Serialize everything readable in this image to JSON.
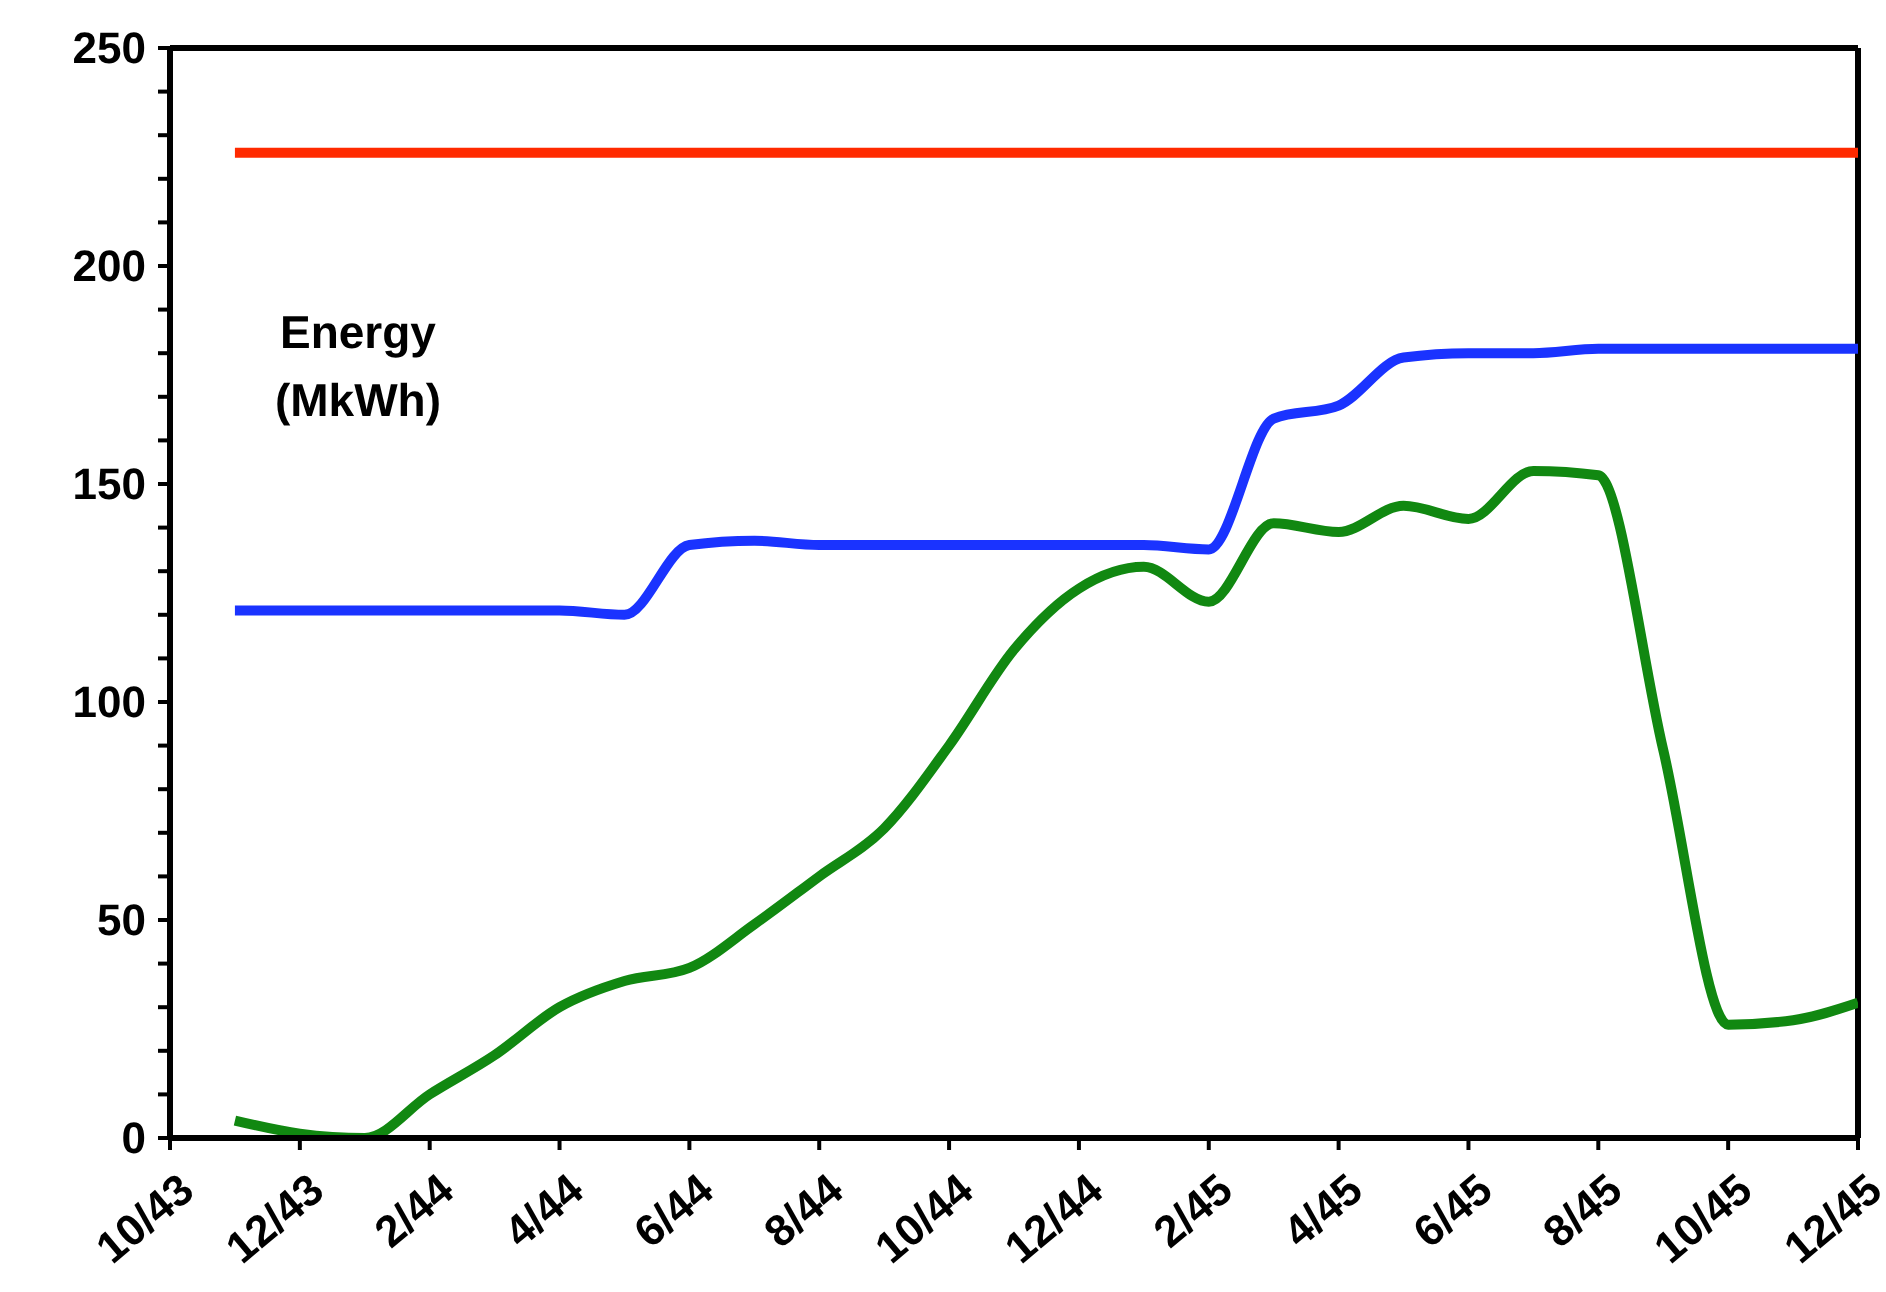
{
  "chart_data": {
    "type": "line",
    "ylabel": "Energy\n(MkWh)",
    "x": [
      "1943-11",
      "1943-12",
      "1944-01",
      "1944-02",
      "1944-03",
      "1944-04",
      "1944-05",
      "1944-06",
      "1944-07",
      "1944-08",
      "1944-09",
      "1944-10",
      "1944-11",
      "1944-12",
      "1945-01",
      "1945-02",
      "1945-03",
      "1945-04",
      "1945-05",
      "1945-06",
      "1945-07",
      "1945-08",
      "1945-09",
      "1945-10",
      "1945-11",
      "1945-12"
    ],
    "series": [
      {
        "color": "#ff2a00",
        "values": [
          226,
          226,
          226,
          226,
          226,
          226,
          226,
          226,
          226,
          226,
          226,
          226,
          226,
          226,
          226,
          226,
          226,
          226,
          226,
          226,
          226,
          226,
          226,
          226,
          226,
          226
        ]
      },
      {
        "color": "#1a33ff",
        "values": [
          121,
          121,
          121,
          121,
          121,
          121,
          120,
          136,
          137,
          136,
          136,
          136,
          136,
          136,
          136,
          135,
          165,
          168,
          179,
          180,
          180,
          181,
          181,
          181,
          181,
          181
        ]
      },
      {
        "color": "#118811",
        "values": [
          4,
          1,
          0,
          10,
          19,
          30,
          36,
          39,
          49,
          60,
          71,
          90,
          112,
          126,
          131,
          123,
          141,
          139,
          145,
          142,
          153,
          152,
          89,
          26,
          27,
          31
        ]
      }
    ],
    "xlim": [
      "1943-10",
      "1945-12"
    ],
    "xticks": [
      {
        "value": "1943-10",
        "label": "10/43"
      },
      {
        "value": "1943-12",
        "label": "12/43"
      },
      {
        "value": "1944-02",
        "label": "2/44"
      },
      {
        "value": "1944-04",
        "label": "4/44"
      },
      {
        "value": "1944-06",
        "label": "6/44"
      },
      {
        "value": "1944-08",
        "label": "8/44"
      },
      {
        "value": "1944-10",
        "label": "10/44"
      },
      {
        "value": "1944-12",
        "label": "12/44"
      },
      {
        "value": "1945-02",
        "label": "2/45"
      },
      {
        "value": "1945-04",
        "label": "4/45"
      },
      {
        "value": "1945-06",
        "label": "6/45"
      },
      {
        "value": "1945-08",
        "label": "8/45"
      },
      {
        "value": "1945-10",
        "label": "10/45"
      },
      {
        "value": "1945-12",
        "label": "12/45"
      }
    ],
    "ylim": [
      0,
      250
    ],
    "yticks": [
      0,
      {
        "value": 10,
        "label": null
      },
      {
        "value": 20,
        "label": null
      },
      {
        "value": 30,
        "label": null
      },
      {
        "value": 40,
        "label": null
      },
      50,
      {
        "value": 60,
        "label": null
      },
      {
        "value": 70,
        "label": null
      },
      {
        "value": 80,
        "label": null
      },
      {
        "value": 90,
        "label": null
      },
      100,
      {
        "value": 110,
        "label": null
      },
      {
        "value": 120,
        "label": null
      },
      {
        "value": 130,
        "label": null
      },
      {
        "value": 140,
        "label": null
      },
      150,
      {
        "value": 160,
        "label": null
      },
      {
        "value": 170,
        "label": null
      },
      {
        "value": 180,
        "label": null
      },
      {
        "value": 190,
        "label": null
      },
      200,
      {
        "value": 210,
        "label": null
      },
      {
        "value": 220,
        "label": null
      },
      {
        "value": 230,
        "label": null
      },
      {
        "value": 240,
        "label": null
      },
      250
    ],
    "grid": false,
    "legend": false,
    "marker": "none",
    "line_style": "solid"
  }
}
